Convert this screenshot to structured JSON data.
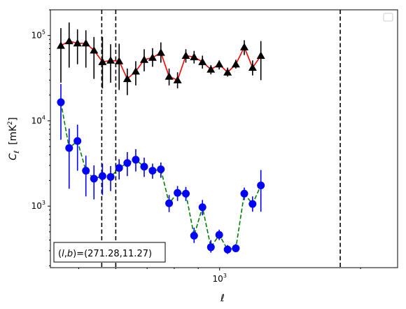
{
  "chart_data": {
    "type": "line",
    "xscale": "log",
    "yscale": "log",
    "xlabel": "ℓ",
    "ylabel_main": "C",
    "ylabel_sub": "ℓ",
    "ylabel_unit": "[mK",
    "ylabel_unit_exp": "2",
    "ylabel_unit_close": "]",
    "xlim": [
      435,
      2400
    ],
    "ylim": [
      190,
      200000
    ],
    "x_ticks": [
      {
        "value": 1000,
        "base": "10",
        "exp": "3"
      }
    ],
    "y_ticks": [
      {
        "value": 1000,
        "base": "10",
        "exp": "3"
      },
      {
        "value": 10000,
        "base": "10",
        "exp": "4"
      },
      {
        "value": 100000,
        "base": "10",
        "exp": "5"
      }
    ],
    "annotation": {
      "prefix": "(",
      "l": "l",
      "comma": ",",
      "b": "b",
      "suffix": ")=(271.28,11.27)"
    },
    "legend_placement": "top-right",
    "vlines": [
      560,
      600,
      1810
    ],
    "series": [
      {
        "color": "#ff0000",
        "marker": "triangle",
        "marker_color": "#000000",
        "error_color": "#000000",
        "linestyle": "solid",
        "points": [
          {
            "x": 458,
            "y": 76000,
            "lo": 28000,
            "hi": 122000
          },
          {
            "x": 477,
            "y": 86000,
            "lo": 42000,
            "hi": 142000
          },
          {
            "x": 497,
            "y": 81000,
            "lo": 46000,
            "hi": 118000
          },
          {
            "x": 518,
            "y": 81000,
            "lo": 42000,
            "hi": 115000
          },
          {
            "x": 539,
            "y": 67000,
            "lo": 31000,
            "hi": 96000
          },
          {
            "x": 562,
            "y": 49000,
            "lo": 24000,
            "hi": 96000
          },
          {
            "x": 585,
            "y": 51000,
            "lo": 28000,
            "hi": 79000
          },
          {
            "x": 610,
            "y": 50000,
            "lo": 23000,
            "hi": 80000
          },
          {
            "x": 635,
            "y": 31000,
            "lo": 20000,
            "hi": 41000
          },
          {
            "x": 662,
            "y": 38000,
            "lo": 26000,
            "hi": 50000
          },
          {
            "x": 690,
            "y": 52000,
            "lo": 38000,
            "hi": 69000
          },
          {
            "x": 719,
            "y": 55000,
            "lo": 43000,
            "hi": 71000
          },
          {
            "x": 749,
            "y": 63000,
            "lo": 48000,
            "hi": 83000
          },
          {
            "x": 780,
            "y": 33000,
            "lo": 26000,
            "hi": 41000
          },
          {
            "x": 813,
            "y": 30000,
            "lo": 24000,
            "hi": 37000
          },
          {
            "x": 847,
            "y": 58000,
            "lo": 48000,
            "hi": 69000
          },
          {
            "x": 882,
            "y": 56000,
            "lo": 47000,
            "hi": 66000
          },
          {
            "x": 919,
            "y": 49000,
            "lo": 41000,
            "hi": 58000
          },
          {
            "x": 958,
            "y": 40000,
            "lo": 35000,
            "hi": 45000
          },
          {
            "x": 998,
            "y": 46000,
            "lo": 40000,
            "hi": 51000
          },
          {
            "x": 1040,
            "y": 37000,
            "lo": 33000,
            "hi": 42000
          },
          {
            "x": 1083,
            "y": 46000,
            "lo": 41000,
            "hi": 52000
          },
          {
            "x": 1129,
            "y": 73000,
            "lo": 59000,
            "hi": 88000
          },
          {
            "x": 1176,
            "y": 42000,
            "lo": 34000,
            "hi": 51000
          },
          {
            "x": 1225,
            "y": 58000,
            "lo": 30000,
            "hi": 86000
          }
        ]
      },
      {
        "color": "#008000",
        "marker": "circle",
        "marker_color": "#0000ff",
        "error_color": "#0000ff",
        "linestyle": "dashed",
        "points": [
          {
            "x": 458,
            "y": 16500,
            "lo": 6000,
            "hi": 27000
          },
          {
            "x": 477,
            "y": 4800,
            "lo": 1600,
            "hi": 8100
          },
          {
            "x": 497,
            "y": 5800,
            "lo": 2600,
            "hi": 9000
          },
          {
            "x": 518,
            "y": 2600,
            "lo": 1300,
            "hi": 3900
          },
          {
            "x": 539,
            "y": 2100,
            "lo": 1200,
            "hi": 3000
          },
          {
            "x": 562,
            "y": 2250,
            "lo": 1350,
            "hi": 3150
          },
          {
            "x": 585,
            "y": 2200,
            "lo": 1500,
            "hi": 2950
          },
          {
            "x": 610,
            "y": 2800,
            "lo": 2050,
            "hi": 3550
          },
          {
            "x": 635,
            "y": 3200,
            "lo": 2250,
            "hi": 4300
          },
          {
            "x": 662,
            "y": 3500,
            "lo": 2550,
            "hi": 4650
          },
          {
            "x": 690,
            "y": 2900,
            "lo": 2200,
            "hi": 3700
          },
          {
            "x": 719,
            "y": 2600,
            "lo": 2100,
            "hi": 3150
          },
          {
            "x": 749,
            "y": 2700,
            "lo": 2150,
            "hi": 3250
          },
          {
            "x": 780,
            "y": 1080,
            "lo": 850,
            "hi": 1350
          },
          {
            "x": 813,
            "y": 1430,
            "lo": 1150,
            "hi": 1720
          },
          {
            "x": 847,
            "y": 1400,
            "lo": 1150,
            "hi": 1680
          },
          {
            "x": 882,
            "y": 450,
            "lo": 370,
            "hi": 560
          },
          {
            "x": 919,
            "y": 970,
            "lo": 780,
            "hi": 1180
          },
          {
            "x": 958,
            "y": 330,
            "lo": 285,
            "hi": 400
          },
          {
            "x": 998,
            "y": 460,
            "lo": 400,
            "hi": 530
          },
          {
            "x": 1040,
            "y": 310,
            "lo": 275,
            "hi": 350
          },
          {
            "x": 1083,
            "y": 320,
            "lo": 290,
            "hi": 360
          },
          {
            "x": 1129,
            "y": 1400,
            "lo": 1180,
            "hi": 1650
          },
          {
            "x": 1176,
            "y": 1060,
            "lo": 860,
            "hi": 1300
          },
          {
            "x": 1225,
            "y": 1750,
            "lo": 860,
            "hi": 2650
          }
        ]
      }
    ]
  }
}
